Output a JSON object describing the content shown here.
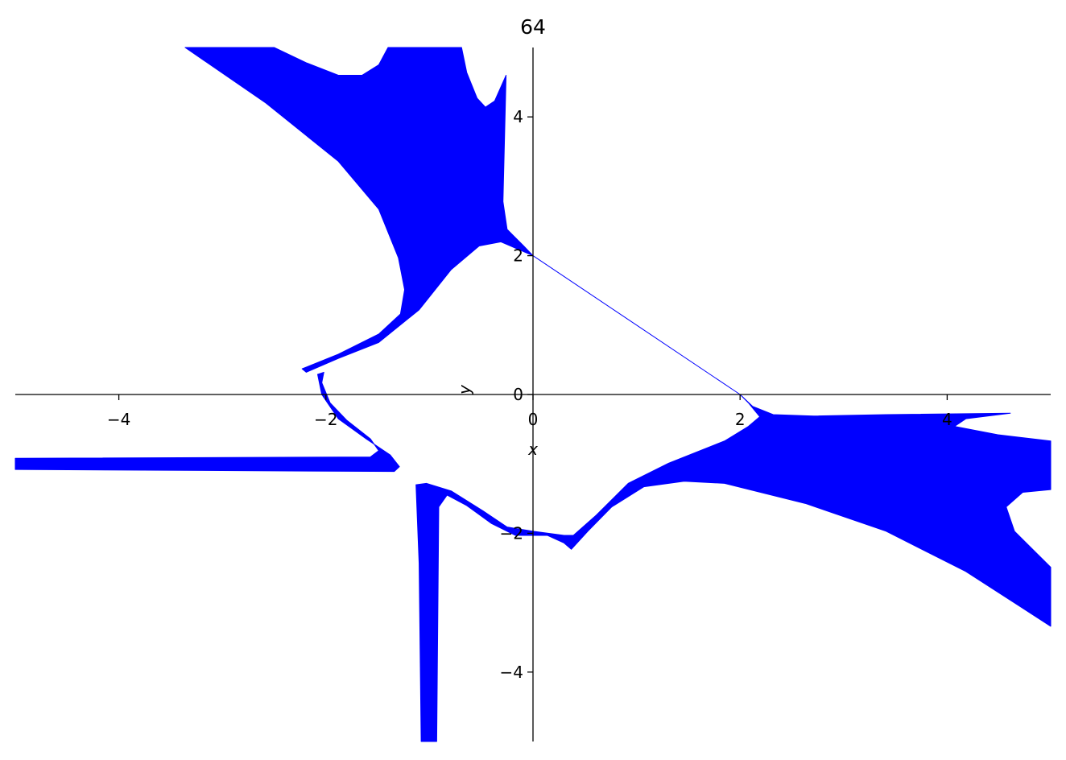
{
  "chart_data": {
    "type": "area",
    "title": "64",
    "xlabel": "x",
    "ylabel": "y",
    "xlim": [
      -5,
      5
    ],
    "ylim": [
      -5,
      5
    ],
    "xticks": [
      -4,
      -2,
      0,
      2,
      4
    ],
    "yticks": [
      -4,
      -2,
      0,
      2,
      4
    ],
    "xtick_labels": [
      "−4",
      "−2",
      "0",
      "2",
      "4"
    ],
    "ytick_labels": [
      "−4",
      "−2",
      "0",
      "2",
      "4"
    ],
    "grid": false,
    "fill_color": "#0000ff",
    "regions": [
      [
        [
          -3.36,
          5.0
        ],
        [
          -2.5,
          5.0
        ],
        [
          -2.19,
          4.78
        ],
        [
          -1.88,
          4.6
        ],
        [
          -1.65,
          4.6
        ],
        [
          -1.49,
          4.75
        ],
        [
          -1.4,
          5.0
        ],
        [
          -0.69,
          5.0
        ],
        [
          -0.64,
          4.64
        ],
        [
          -0.54,
          4.27
        ],
        [
          -0.46,
          4.14
        ],
        [
          -0.37,
          4.23
        ],
        [
          -0.26,
          4.6
        ],
        [
          -0.29,
          2.78
        ],
        [
          -0.25,
          2.38
        ],
        [
          -0.09,
          2.14
        ],
        [
          0,
          2.0
        ],
        [
          -0.31,
          2.2
        ],
        [
          -0.52,
          2.14
        ],
        [
          -0.79,
          1.8
        ],
        [
          -1.1,
          1.22
        ],
        [
          -1.49,
          0.75
        ],
        [
          -1.88,
          0.52
        ],
        [
          -2.19,
          0.32
        ],
        [
          -2.23,
          0.37
        ],
        [
          -1.88,
          0.58
        ],
        [
          -1.49,
          0.87
        ],
        [
          -1.28,
          1.16
        ],
        [
          -1.24,
          1.51
        ],
        [
          -1.3,
          1.97
        ],
        [
          -1.49,
          2.67
        ],
        [
          -1.88,
          3.36
        ],
        [
          -2.58,
          4.2
        ]
      ],
      [
        [
          -5,
          -0.92
        ],
        [
          -1.57,
          -0.9
        ],
        [
          -1.49,
          -0.81
        ],
        [
          -1.57,
          -0.64
        ],
        [
          -1.8,
          -0.37
        ],
        [
          -1.96,
          -0.12
        ],
        [
          -2.04,
          0.17
        ],
        [
          -2.02,
          0.32
        ],
        [
          -2.08,
          0.29
        ],
        [
          -2.04,
          0
        ],
        [
          -1.88,
          -0.35
        ],
        [
          -1.61,
          -0.64
        ],
        [
          -1.38,
          -0.87
        ],
        [
          -1.29,
          -1.04
        ],
        [
          -1.34,
          -1.11
        ],
        [
          -5,
          -1.08
        ]
      ],
      [
        [
          -1.13,
          -1.3
        ],
        [
          -1.03,
          -1.28
        ],
        [
          -0.79,
          -1.39
        ],
        [
          -0.48,
          -1.68
        ],
        [
          -0.25,
          -1.91
        ],
        [
          0,
          -1.97
        ],
        [
          0.3,
          -2.03
        ],
        [
          0.39,
          -2.03
        ],
        [
          0.61,
          -1.74
        ],
        [
          0.92,
          -1.28
        ],
        [
          1.31,
          -0.99
        ],
        [
          1.85,
          -0.67
        ],
        [
          2.08,
          -0.46
        ],
        [
          2.19,
          -0.32
        ],
        [
          2.08,
          -0.12
        ],
        [
          2.0,
          0
        ],
        [
          2.12,
          -0.17
        ],
        [
          2.32,
          -0.29
        ],
        [
          2.71,
          -0.31
        ],
        [
          3.41,
          -0.29
        ],
        [
          4.61,
          -0.27
        ],
        [
          4.18,
          -0.35
        ],
        [
          4.07,
          -0.46
        ],
        [
          4.49,
          -0.58
        ],
        [
          5,
          -0.67
        ],
        [
          5,
          -1.37
        ],
        [
          4.73,
          -1.41
        ],
        [
          4.57,
          -1.62
        ],
        [
          4.65,
          -1.97
        ],
        [
          5,
          -2.49
        ],
        [
          5,
          -3.34
        ],
        [
          4.18,
          -2.55
        ],
        [
          3.41,
          -1.97
        ],
        [
          2.63,
          -1.57
        ],
        [
          1.85,
          -1.28
        ],
        [
          1.46,
          -1.25
        ],
        [
          1.07,
          -1.33
        ],
        [
          0.76,
          -1.62
        ],
        [
          0.53,
          -1.97
        ],
        [
          0.37,
          -2.23
        ],
        [
          0.3,
          -2.14
        ],
        [
          0.14,
          -2.03
        ],
        [
          -0.17,
          -2.03
        ],
        [
          -0.4,
          -1.86
        ],
        [
          -0.64,
          -1.6
        ],
        [
          -0.83,
          -1.45
        ],
        [
          -0.91,
          -1.62
        ],
        [
          -0.93,
          -5
        ],
        [
          -1.08,
          -5
        ],
        [
          -1.1,
          -2.43
        ]
      ]
    ],
    "lines": [
      [
        [
          0,
          2
        ],
        [
          2,
          0
        ]
      ]
    ]
  }
}
